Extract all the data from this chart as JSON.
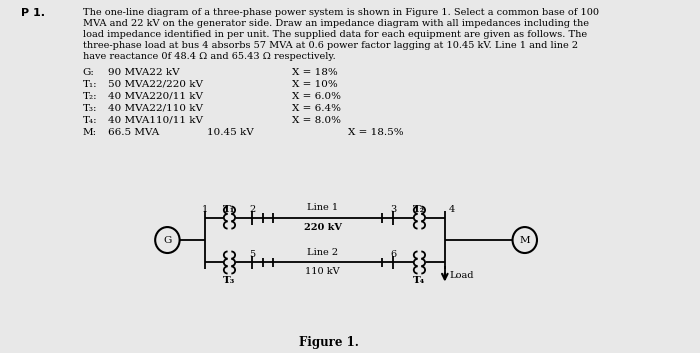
{
  "bg_color": "#e8e8e8",
  "problem_text_lines": [
    "The one-line diagram of a three-phase power system is shown in Figure 1. Select a common base of 100",
    "MVA and 22 kV on the generator side. Draw an impedance diagram with all impedances including the",
    "load impedance identified in per unit. The supplied data for each equipment are given as follows. The",
    "three-phase load at bus 4 absorbs 57 MVA at 0.6 power factor lagging at 10.45 kV. Line 1 and line 2",
    "have reactance 0f 48.4 Ω and 65.43 Ω respectively."
  ],
  "table_rows": [
    [
      "G:",
      "90 MVA22 kV",
      "",
      "X = 18%"
    ],
    [
      "T₁:",
      "50 MVA22/220 kV",
      "",
      "X = 10%"
    ],
    [
      "T₂:",
      "40 MVA220/11 kV",
      "",
      "X = 6.0%"
    ],
    [
      "T₃:",
      "40 MVA22/110 kV",
      "",
      "X = 6.4%"
    ],
    [
      "T₄:",
      "40 MVA110/11 kV",
      "",
      "X = 8.0%"
    ],
    [
      "M:",
      "66.5 MVA",
      "10.45 kV",
      "X = 18.5%"
    ]
  ],
  "figure_caption": "Figure 1."
}
